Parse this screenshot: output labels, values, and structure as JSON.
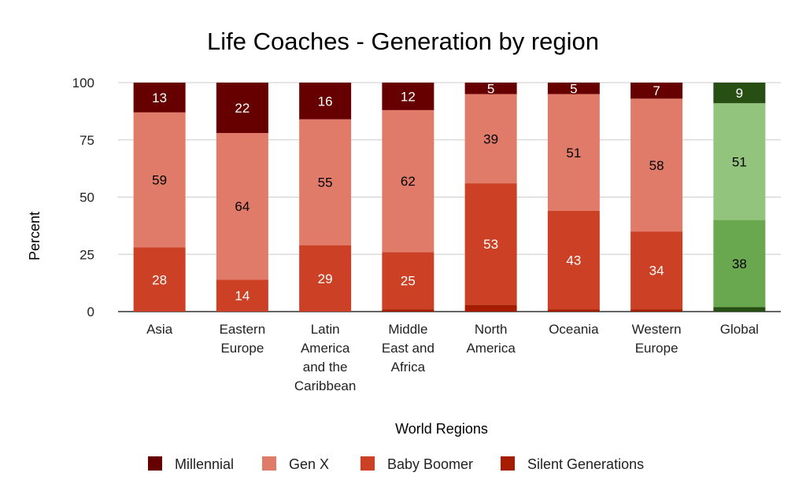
{
  "chart_data": {
    "type": "bar",
    "stacked": true,
    "title": "Life Coaches - Generation by region",
    "xlabel": "World Regions",
    "ylabel": "Percent",
    "ylim": [
      0,
      100
    ],
    "yticks": [
      0,
      25,
      50,
      75,
      100
    ],
    "grid": true,
    "legend_position": "bottom",
    "categories": [
      "Asia",
      "Eastern Europe",
      "Latin America and the Caribbean",
      "Middle East and Africa",
      "North America",
      "Oceania",
      "Western Europe",
      "Global"
    ],
    "category_lines": [
      [
        "Asia"
      ],
      [
        "Eastern",
        "Europe"
      ],
      [
        "Latin",
        "America",
        "and the",
        "Caribbean"
      ],
      [
        "Middle",
        "East and",
        "Africa"
      ],
      [
        "North",
        "America"
      ],
      [
        "Oceania"
      ],
      [
        "Western",
        "Europe"
      ],
      [
        "Global"
      ]
    ],
    "series": [
      {
        "name": "Silent Generations",
        "values": [
          0,
          0,
          0,
          1,
          3,
          1,
          1,
          2
        ],
        "color": "#a61c00",
        "highlight_color": "#274e13",
        "show_labels": false
      },
      {
        "name": "Baby Boomer",
        "values": [
          28,
          14,
          29,
          25,
          53,
          43,
          34,
          38
        ],
        "color": "#cc4125",
        "highlight_color": "#6aa84f",
        "show_labels": true
      },
      {
        "name": "Gen X",
        "values": [
          59,
          64,
          55,
          62,
          39,
          51,
          58,
          51
        ],
        "color": "#e07b6a",
        "highlight_color": "#93c47d",
        "show_labels": true
      },
      {
        "name": "Millennial",
        "values": [
          13,
          22,
          16,
          12,
          5,
          5,
          7,
          9
        ],
        "color": "#660000",
        "highlight_color": "#274e13",
        "show_labels": true
      }
    ],
    "highlighted_category": "Global",
    "legend_order": [
      "Millennial",
      "Gen X",
      "Baby Boomer",
      "Silent Generations"
    ]
  }
}
